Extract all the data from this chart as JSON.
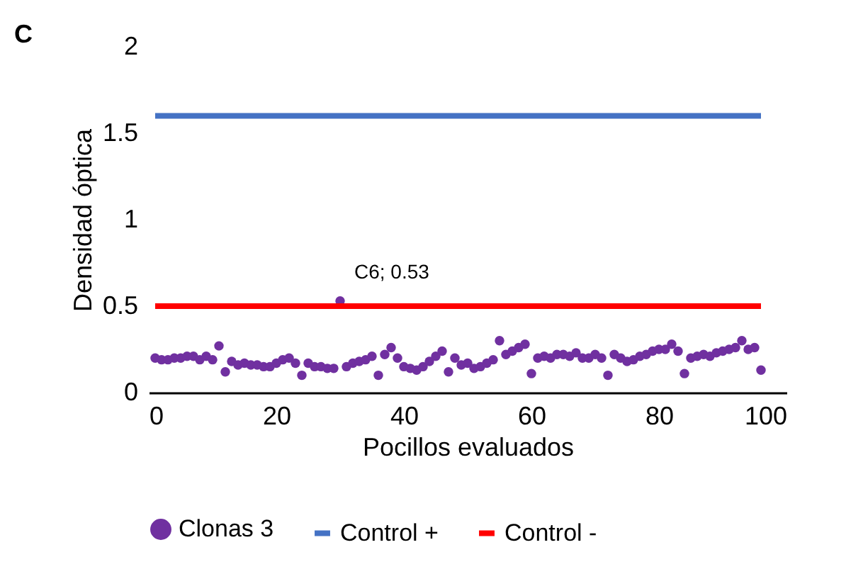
{
  "chart_data": {
    "type": "scatter",
    "title": "C",
    "xlabel": "Pocillos evaluados",
    "ylabel": "Densidad óptica",
    "xlim": [
      0,
      100
    ],
    "xticks": [
      0,
      20,
      40,
      60,
      80,
      100
    ],
    "ylim": [
      0,
      2
    ],
    "yticks": [
      0,
      0.5,
      1,
      1.5,
      2
    ],
    "grid": false,
    "legend": "bottom",
    "series": [
      {
        "name": "Clonas 3",
        "color": "#7030a0",
        "marker": "circle",
        "x": [
          1,
          2,
          3,
          4,
          5,
          6,
          7,
          8,
          9,
          10,
          11,
          12,
          13,
          14,
          15,
          16,
          17,
          18,
          19,
          20,
          21,
          22,
          23,
          24,
          25,
          26,
          27,
          28,
          29,
          30,
          31,
          32,
          33,
          34,
          35,
          36,
          37,
          38,
          39,
          40,
          41,
          42,
          43,
          44,
          45,
          46,
          47,
          48,
          49,
          50,
          51,
          52,
          53,
          54,
          55,
          56,
          57,
          58,
          59,
          60,
          61,
          62,
          63,
          64,
          65,
          66,
          67,
          68,
          69,
          70,
          71,
          72,
          73,
          74,
          75,
          76,
          77,
          78,
          79,
          80,
          81,
          82,
          83,
          84,
          85,
          86,
          87,
          88,
          89,
          90,
          91,
          92,
          93,
          94,
          95,
          96
        ],
        "values": [
          0.2,
          0.19,
          0.19,
          0.2,
          0.2,
          0.21,
          0.21,
          0.19,
          0.21,
          0.19,
          0.27,
          0.12,
          0.18,
          0.16,
          0.17,
          0.16,
          0.16,
          0.15,
          0.15,
          0.17,
          0.19,
          0.2,
          0.17,
          0.1,
          0.17,
          0.15,
          0.15,
          0.14,
          0.14,
          0.53,
          0.15,
          0.17,
          0.18,
          0.19,
          0.21,
          0.1,
          0.22,
          0.26,
          0.2,
          0.15,
          0.14,
          0.13,
          0.15,
          0.18,
          0.21,
          0.24,
          0.12,
          0.2,
          0.16,
          0.17,
          0.14,
          0.15,
          0.17,
          0.19,
          0.3,
          0.22,
          0.24,
          0.26,
          0.28,
          0.11,
          0.2,
          0.21,
          0.2,
          0.22,
          0.22,
          0.21,
          0.23,
          0.2,
          0.2,
          0.22,
          0.2,
          0.1,
          0.22,
          0.2,
          0.18,
          0.19,
          0.21,
          0.22,
          0.24,
          0.25,
          0.25,
          0.28,
          0.24,
          0.11,
          0.2,
          0.21,
          0.22,
          0.21,
          0.23,
          0.24,
          0.25,
          0.26,
          0.3,
          0.25,
          0.26,
          0.13
        ]
      },
      {
        "name": "Control +",
        "color": "#4472c4",
        "type": "line",
        "marker": "none",
        "line_style": "solid",
        "x": [
          1,
          96
        ],
        "values": [
          1.6,
          1.6
        ]
      },
      {
        "name": "Control -",
        "color": "#ff0000",
        "type": "line",
        "marker": "none",
        "line_style": "solid",
        "x": [
          1,
          96
        ],
        "values": [
          0.5,
          0.5
        ]
      }
    ],
    "annotations": [
      {
        "text": "C6; 0.53",
        "x": 30,
        "y": 0.53
      }
    ]
  }
}
